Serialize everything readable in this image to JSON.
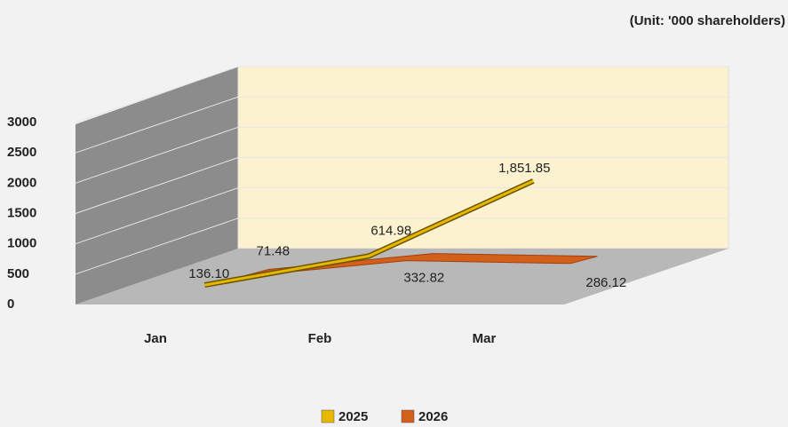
{
  "chart_data": {
    "type": "line3d",
    "subtitle": "(Unit: '000 shareholders)",
    "categories": [
      "Jan",
      "Feb",
      "Mar"
    ],
    "series": [
      {
        "name": "2025",
        "color": "#e6b800",
        "values": [
          136.1,
          614.98,
          1851.85
        ],
        "value_labels": [
          "136.10",
          "614.98",
          "1,851.85"
        ]
      },
      {
        "name": "2026",
        "color": "#d2601a",
        "values": [
          71.48,
          332.82,
          286.12
        ],
        "value_labels": [
          "71.48",
          "332.82",
          "286.12"
        ]
      }
    ],
    "ylim": [
      0,
      3000
    ],
    "yticks": [
      0,
      500,
      1000,
      1500,
      2000,
      2500,
      3000
    ],
    "grid": true
  }
}
